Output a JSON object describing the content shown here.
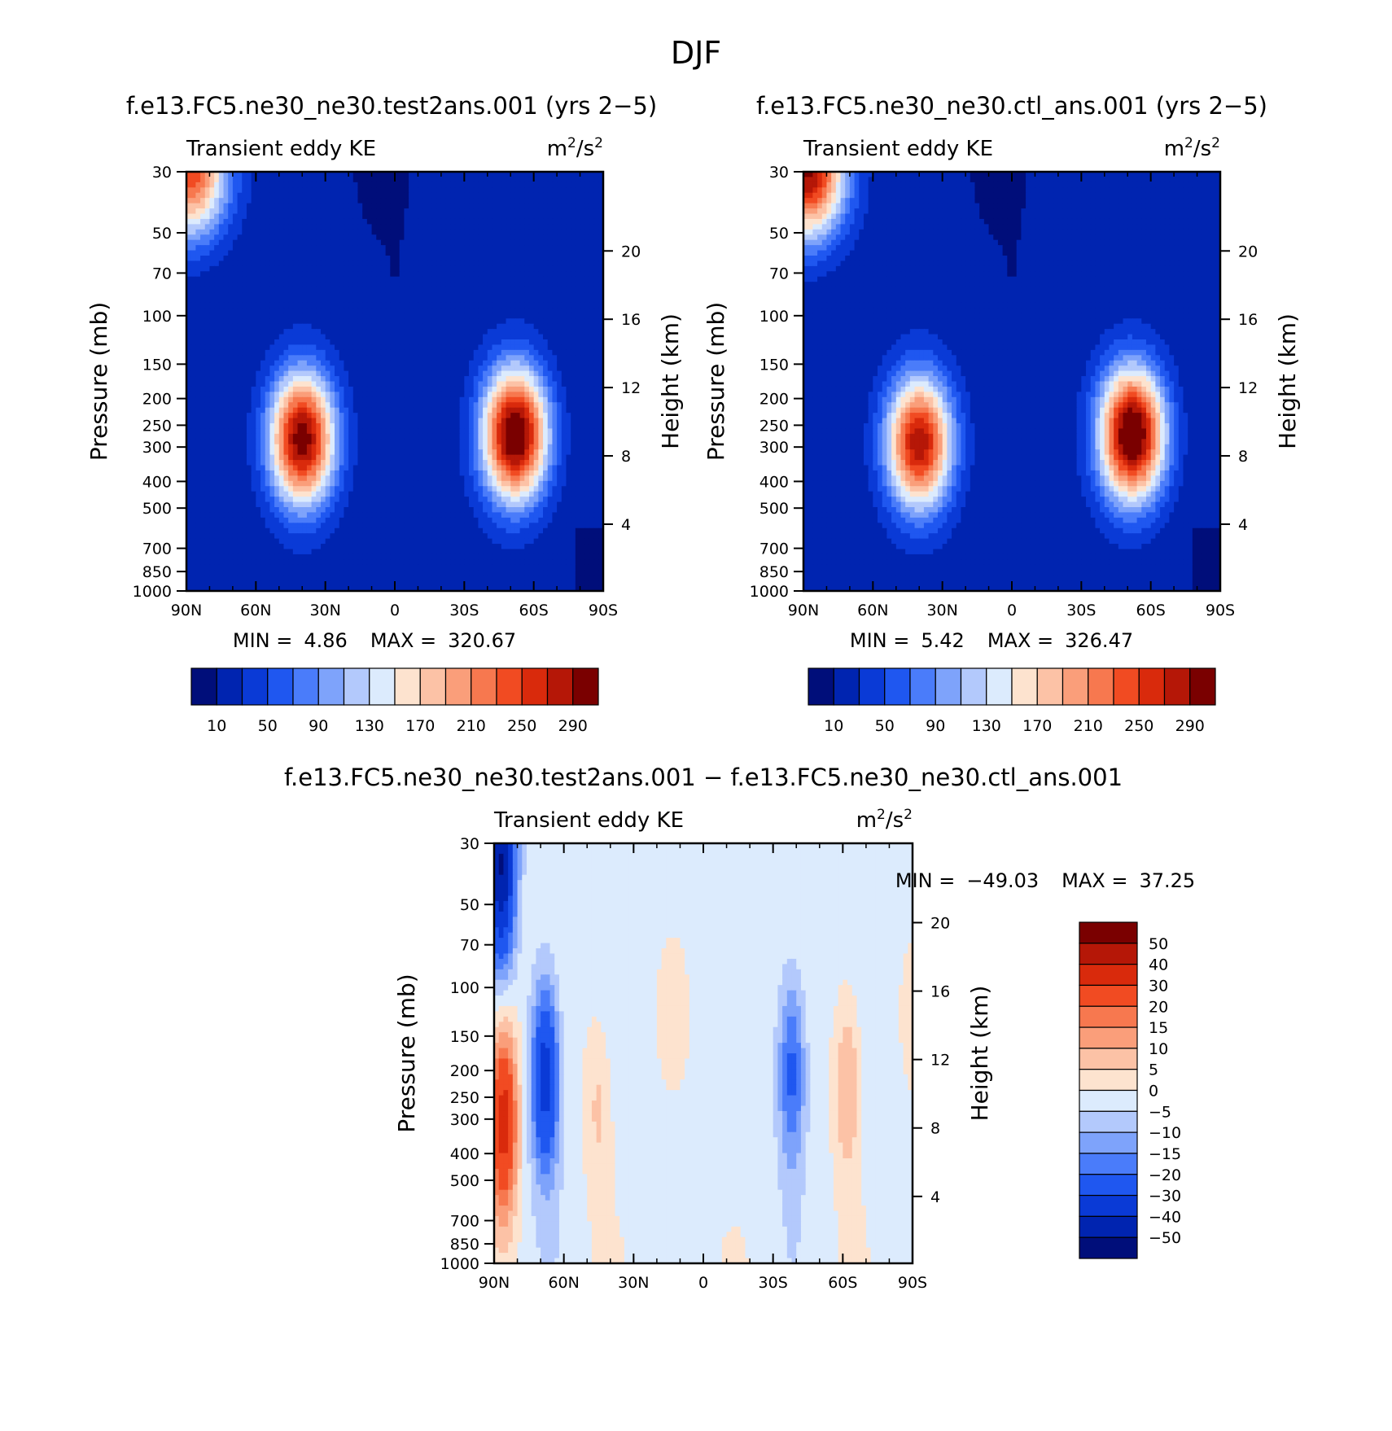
{
  "main_title": "DJF",
  "colors": {
    "ke_scale": [
      "#000e7a",
      "#0024b0",
      "#0a3ad6",
      "#1f57f0",
      "#4a7cfa",
      "#7ea3fb",
      "#b3c9fc",
      "#dcebfd",
      "#fde3cf",
      "#fcc2a6",
      "#fa9e7a",
      "#f7784f",
      "#f14b22",
      "#d92a0c",
      "#b51707",
      "#7a0000"
    ],
    "diff_scale": [
      "#000e7a",
      "#0024b0",
      "#0a3ad6",
      "#1f57f0",
      "#4a7cfa",
      "#7ea3fb",
      "#b3c9fc",
      "#dcebfd",
      "#fde3cf",
      "#fcc2a6",
      "#fa9e7a",
      "#f7784f",
      "#f14b22",
      "#d92a0c",
      "#b51707",
      "#7a0000"
    ]
  },
  "chart_data": [
    {
      "type": "heatmap",
      "title": "f.e13.FC5.ne30_ne30.test2ans.001 (yrs 2-5)",
      "field_label": "Transient eddy KE",
      "units_base": "m",
      "units_exp1": "2",
      "units_sep": "/s",
      "units_exp2": "2",
      "ylabel": "Pressure (mb)",
      "y2label": "Height (km)",
      "x_ticks": [
        "90N",
        "60N",
        "30N",
        "0",
        "30S",
        "60S",
        "90S"
      ],
      "y_ticks": [
        "30",
        "50",
        "70",
        "100",
        "150",
        "200",
        "250",
        "300",
        "400",
        "500",
        "700",
        "850",
        "1000"
      ],
      "y2_ticks": [
        "20",
        "16",
        "12",
        "8",
        "4"
      ],
      "min_label": "MIN =",
      "min_value": "4.86",
      "max_label": "MAX =",
      "max_value": "320.67",
      "colorbar_labels": [
        "10",
        "50",
        "90",
        "130",
        "170",
        "210",
        "250",
        "290"
      ],
      "levels": [
        10,
        30,
        50,
        70,
        90,
        110,
        130,
        150,
        170,
        190,
        210,
        230,
        250,
        270,
        290
      ],
      "features": [
        {
          "lat": -52,
          "p": 270,
          "peak": 320.67
        },
        {
          "lat": 40,
          "p": 280,
          "peak": 300
        },
        {
          "lat": 88,
          "p": 30,
          "peak": 240
        },
        {
          "lat": 10,
          "p": 30,
          "peak": 5
        }
      ]
    },
    {
      "type": "heatmap",
      "title": "f.e13.FC5.ne30_ne30.ctl_ans.001 (yrs 2-5)",
      "field_label": "Transient eddy KE",
      "units_base": "m",
      "units_exp1": "2",
      "units_sep": "/s",
      "units_exp2": "2",
      "ylabel": "Pressure (mb)",
      "y2label": "Height (km)",
      "x_ticks": [
        "90N",
        "60N",
        "30N",
        "0",
        "30S",
        "60S",
        "90S"
      ],
      "y_ticks": [
        "30",
        "50",
        "70",
        "100",
        "150",
        "200",
        "250",
        "300",
        "400",
        "500",
        "700",
        "850",
        "1000"
      ],
      "y2_ticks": [
        "20",
        "16",
        "12",
        "8",
        "4"
      ],
      "min_label": "MIN =",
      "min_value": "5.42",
      "max_label": "MAX =",
      "max_value": "326.47",
      "colorbar_labels": [
        "10",
        "50",
        "90",
        "130",
        "170",
        "210",
        "250",
        "290"
      ],
      "levels": [
        10,
        30,
        50,
        70,
        90,
        110,
        130,
        150,
        170,
        190,
        210,
        230,
        250,
        270,
        290
      ],
      "features": [
        {
          "lat": -52,
          "p": 270,
          "peak": 326.47
        },
        {
          "lat": 40,
          "p": 290,
          "peak": 280
        },
        {
          "lat": 88,
          "p": 30,
          "peak": 290
        },
        {
          "lat": 10,
          "p": 30,
          "peak": 5
        }
      ]
    },
    {
      "type": "heatmap",
      "title": "f.e13.FC5.ne30_ne30.test2ans.001 - f.e13.FC5.ne30_ne30.ctl_ans.001",
      "field_label": "Transient eddy KE",
      "units_base": "m",
      "units_exp1": "2",
      "units_sep": "/s",
      "units_exp2": "2",
      "ylabel": "Pressure (mb)",
      "y2label": "Height (km)",
      "x_ticks": [
        "90N",
        "60N",
        "30N",
        "0",
        "30S",
        "60S",
        "90S"
      ],
      "y_ticks": [
        "30",
        "50",
        "70",
        "100",
        "150",
        "200",
        "250",
        "300",
        "400",
        "500",
        "700",
        "850",
        "1000"
      ],
      "y2_ticks": [
        "20",
        "16",
        "12",
        "8",
        "4"
      ],
      "min_label": "MIN =",
      "min_value": "-49.03",
      "max_label": "MAX =",
      "max_value": "37.25",
      "colorbar_labels": [
        "50",
        "40",
        "30",
        "20",
        "15",
        "10",
        "5",
        "0",
        "-5",
        "-10",
        "-15",
        "-20",
        "-30",
        "-40",
        "-50"
      ],
      "levels": [
        -50,
        -40,
        -30,
        -20,
        -15,
        -10,
        -5,
        0,
        5,
        10,
        15,
        20,
        30,
        40,
        50
      ],
      "features": [
        {
          "lat": 86,
          "p": 300,
          "peak": 37.25
        },
        {
          "lat": 68,
          "p": 210,
          "peak": -35
        },
        {
          "lat": 87,
          "p": 35,
          "peak": -49.03
        },
        {
          "lat": -62,
          "p": 220,
          "peak": 14
        },
        {
          "lat": 45,
          "p": 260,
          "peak": 9
        },
        {
          "lat": -38,
          "p": 200,
          "peak": -22
        }
      ]
    }
  ]
}
